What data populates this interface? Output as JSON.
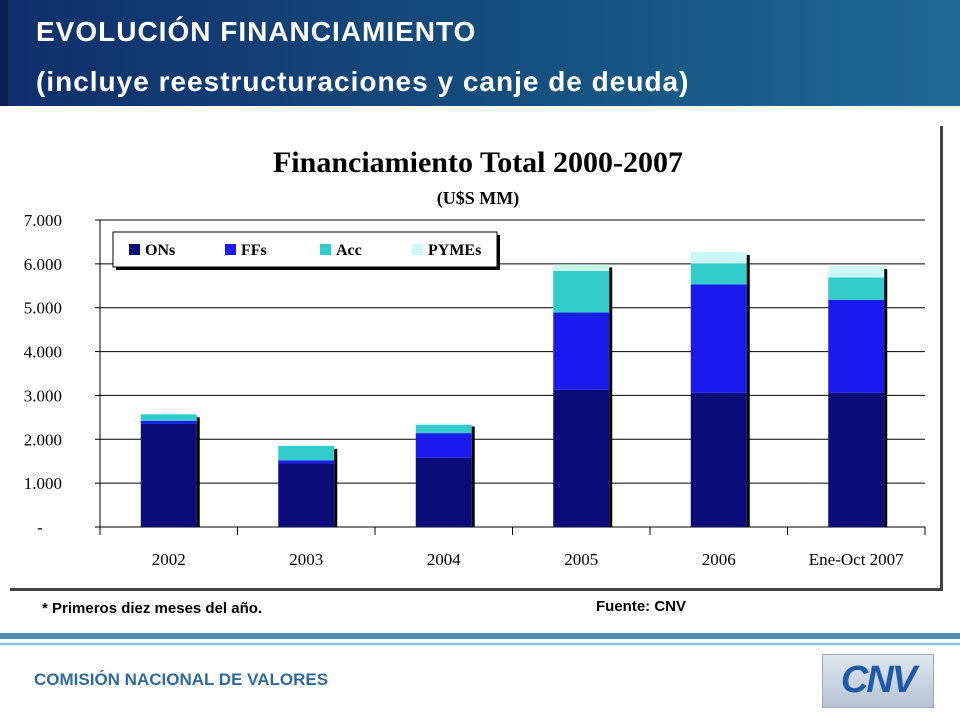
{
  "header": {
    "title_line1": "EVOLUCIÓN FINANCIAMIENTO",
    "title_line2": "(incluye reestructuraciones y canje de deuda)"
  },
  "chart_data": {
    "type": "bar",
    "stacked": true,
    "title": "Financiamiento Total 2000-2007",
    "subtitle": "(U$S MM)",
    "categories": [
      "2002",
      "2003",
      "2004",
      "2005",
      "2006",
      "Ene-Oct 2007"
    ],
    "series": [
      {
        "name": "ONs",
        "color": "#0b0b7a",
        "values": [
          2350,
          1450,
          1580,
          3130,
          3060,
          3060
        ]
      },
      {
        "name": "FFs",
        "color": "#1a1aee",
        "values": [
          70,
          70,
          560,
          1760,
          2470,
          2120
        ]
      },
      {
        "name": "Acc",
        "color": "#33cccc",
        "values": [
          150,
          330,
          190,
          950,
          480,
          510
        ]
      },
      {
        "name": "PYMEs",
        "color": "#ccf7f7",
        "values": [
          0,
          0,
          30,
          150,
          260,
          260
        ]
      }
    ],
    "ylim": [
      0,
      7000
    ],
    "yticks": [
      {
        "value": 0,
        "label": "-"
      },
      {
        "value": 1000,
        "label": "1.000"
      },
      {
        "value": 2000,
        "label": "2.000"
      },
      {
        "value": 3000,
        "label": "3.000"
      },
      {
        "value": 4000,
        "label": "4.000"
      },
      {
        "value": 5000,
        "label": "5.000"
      },
      {
        "value": 6000,
        "label": "6.000"
      },
      {
        "value": 7000,
        "label": "7.000"
      }
    ],
    "grid": true,
    "legend": "top-left"
  },
  "footnote": "* Primeros diez meses del año.",
  "source": "Fuente: CNV",
  "footer": {
    "org": "COMISIÓN NACIONAL DE VALORES",
    "logo_text": "CNV"
  }
}
